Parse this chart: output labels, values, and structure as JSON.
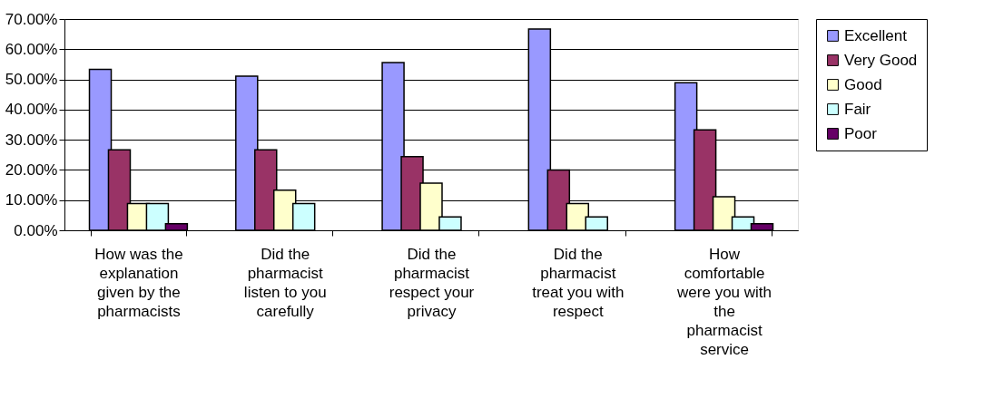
{
  "chart_data": {
    "type": "bar",
    "categories": [
      "How was the explanation given by the pharmacists",
      "Did the pharmacist listen to you carefully",
      "Did the pharmacist respect your privacy",
      "Did the pharmacist treat you with respect",
      "How comfortable were you with the pharmacist service"
    ],
    "series": [
      {
        "name": "Excellent",
        "color": "#9999ff",
        "values": [
          53.3,
          51.1,
          55.6,
          66.7,
          48.9
        ]
      },
      {
        "name": "Very Good",
        "color": "#993366",
        "values": [
          26.7,
          26.7,
          24.4,
          20.0,
          33.3
        ]
      },
      {
        "name": "Good",
        "color": "#ffffcc",
        "values": [
          8.9,
          13.3,
          15.6,
          8.9,
          11.1
        ]
      },
      {
        "name": "Fair",
        "color": "#ccffff",
        "values": [
          8.9,
          8.9,
          4.4,
          4.4,
          4.4
        ]
      },
      {
        "name": "Poor",
        "color": "#660066",
        "values": [
          2.2,
          0,
          0,
          0,
          2.2
        ]
      }
    ],
    "ylim": [
      0,
      70
    ],
    "yticks": [
      {
        "value": 0,
        "label": "0.00%"
      },
      {
        "value": 10,
        "label": "10.00%"
      },
      {
        "value": 20,
        "label": "20.00%"
      },
      {
        "value": 30,
        "label": "30.00%"
      },
      {
        "value": 40,
        "label": "40.00%"
      },
      {
        "value": 50,
        "label": "50.00%"
      },
      {
        "value": 60,
        "label": "60.00%"
      },
      {
        "value": 70,
        "label": "70.00%"
      }
    ],
    "grid": "y",
    "legend": "right"
  }
}
